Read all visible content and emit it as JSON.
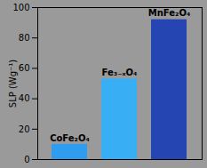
{
  "chart_data": {
    "type": "bar",
    "categories": [
      "CoFe₂O₄",
      "Fe₃₋ₓO₄",
      "MnFe₂O₄"
    ],
    "values": [
      10,
      53,
      92
    ],
    "colors": [
      "#2f9cf0",
      "#38aef5",
      "#2545b3"
    ],
    "ylabel": "SLP (Wg⁻¹)",
    "ylim": [
      0,
      100
    ],
    "yticks": [
      0,
      20,
      40,
      60,
      80,
      100
    ],
    "grid": false,
    "tick_labels": "y"
  }
}
